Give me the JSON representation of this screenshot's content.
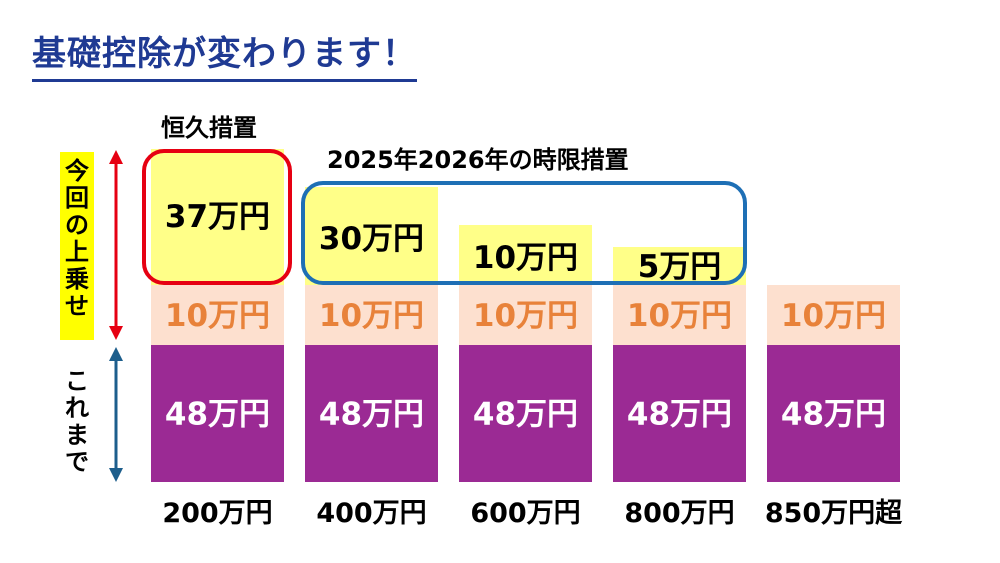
{
  "title": "基礎控除が変わります！",
  "labels": {
    "increase": "今回の上乗せ",
    "current": "これまで",
    "permanent": "恒久措置",
    "temporary": "2025年2026年の時限措置"
  },
  "colors": {
    "base": "#9b2a94",
    "prior_addition": "#fde0cf",
    "prior_addition_text": "#e8823a",
    "new_addition": "#ffff88",
    "permanent_frame": "#e60012",
    "temporary_frame": "#1e6fb5",
    "arrow_top": "#e60012",
    "arrow_bottom": "#1d5e8c",
    "title": "#1f3a93"
  },
  "chart_data": {
    "type": "bar",
    "stacked": true,
    "unit": "万円",
    "categories": [
      "200万円",
      "400万円",
      "600万円",
      "800万円",
      "850万円超"
    ],
    "series": [
      {
        "values": [
          48,
          48,
          48,
          48,
          48
        ],
        "labels": [
          "48万円",
          "48万円",
          "48万円",
          "48万円",
          "48万円"
        ]
      },
      {
        "values": [
          10,
          10,
          10,
          10,
          10
        ],
        "labels": [
          "10万円",
          "10万円",
          "10万円",
          "10万円",
          "10万円"
        ]
      },
      {
        "values": [
          37,
          30,
          10,
          5,
          0
        ],
        "labels": [
          "37万円",
          "30万円",
          "10万円",
          "5万円",
          ""
        ]
      }
    ]
  }
}
